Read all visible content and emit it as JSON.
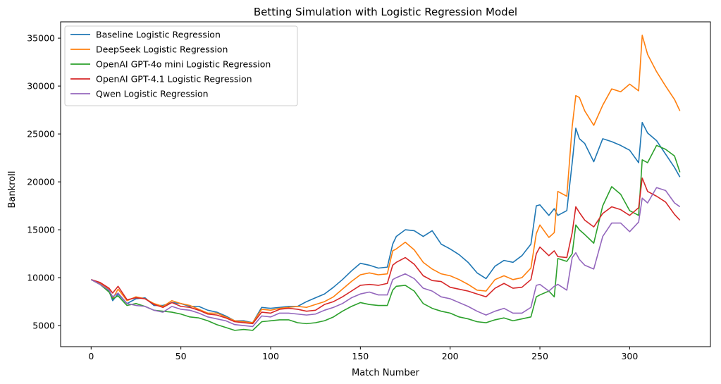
{
  "chart_data": {
    "type": "line",
    "title": "Betting Simulation with Logistic Regression Model",
    "xlabel": "Match Number",
    "ylabel": "Bankroll",
    "xlim": [
      -17,
      345
    ],
    "ylim": [
      2800,
      36700
    ],
    "xticks": [
      0,
      50,
      100,
      150,
      200,
      250,
      300
    ],
    "yticks": [
      5000,
      10000,
      15000,
      20000,
      25000,
      30000,
      35000
    ],
    "grid": false,
    "legend_position": "top-left",
    "series": [
      {
        "name": "Baseline Logistic Regression",
        "color": "#1f77b4",
        "x": [
          0,
          5,
          10,
          12,
          15,
          20,
          25,
          30,
          35,
          40,
          45,
          50,
          55,
          60,
          65,
          70,
          75,
          80,
          85,
          90,
          95,
          100,
          105,
          110,
          115,
          120,
          125,
          130,
          135,
          140,
          145,
          150,
          155,
          160,
          165,
          168,
          170,
          175,
          180,
          185,
          190,
          195,
          200,
          205,
          210,
          215,
          220,
          225,
          230,
          235,
          240,
          245,
          248,
          250,
          255,
          258,
          260,
          265,
          268,
          270,
          272,
          275,
          280,
          285,
          290,
          295,
          300,
          305,
          307,
          310,
          315,
          320,
          325,
          328
        ],
        "y": [
          9800,
          9300,
          8600,
          7600,
          8300,
          7300,
          7800,
          7900,
          7100,
          7100,
          7400,
          7300,
          7000,
          7000,
          6600,
          6400,
          6000,
          5500,
          5500,
          5300,
          6900,
          6800,
          6900,
          7000,
          7000,
          7500,
          7900,
          8300,
          9000,
          9800,
          10700,
          11500,
          11300,
          11000,
          11100,
          13500,
          14300,
          15000,
          14900,
          14300,
          14900,
          13500,
          13000,
          12400,
          11600,
          10500,
          9900,
          11200,
          11800,
          11600,
          12300,
          13500,
          17500,
          17600,
          16500,
          17200,
          16500,
          17000,
          22000,
          25600,
          24500,
          24000,
          22100,
          24500,
          24200,
          23800,
          23300,
          22000,
          26200,
          25100,
          24300,
          22900,
          21500,
          20500
        ]
      },
      {
        "name": "DeepSeek Logistic Regression",
        "color": "#ff7f0e",
        "x": [
          0,
          5,
          10,
          12,
          15,
          20,
          25,
          30,
          35,
          40,
          45,
          50,
          55,
          60,
          65,
          70,
          75,
          80,
          85,
          90,
          95,
          100,
          105,
          110,
          115,
          120,
          125,
          130,
          135,
          140,
          145,
          150,
          155,
          160,
          165,
          168,
          170,
          175,
          180,
          185,
          190,
          195,
          200,
          205,
          210,
          215,
          220,
          225,
          230,
          235,
          240,
          245,
          248,
          250,
          255,
          258,
          260,
          265,
          268,
          270,
          272,
          275,
          280,
          285,
          290,
          295,
          300,
          305,
          307,
          310,
          315,
          320,
          325,
          328
        ],
        "y": [
          9800,
          9400,
          8800,
          7800,
          8800,
          7600,
          8000,
          7800,
          7300,
          7000,
          7600,
          7300,
          7100,
          6700,
          6300,
          6300,
          5900,
          5500,
          5400,
          5300,
          6700,
          6600,
          6800,
          6900,
          7000,
          6900,
          7200,
          7500,
          8000,
          8800,
          9600,
          10300,
          10500,
          10300,
          10400,
          12800,
          13000,
          13700,
          12900,
          11600,
          10900,
          10400,
          10200,
          9800,
          9300,
          8700,
          8600,
          9800,
          10200,
          9800,
          10000,
          11000,
          14600,
          15500,
          14200,
          14700,
          19000,
          18500,
          25800,
          29000,
          28800,
          27400,
          25900,
          28000,
          29700,
          29400,
          30200,
          29500,
          35300,
          33300,
          31500,
          30000,
          28600,
          27400
        ]
      },
      {
        "name": "OpenAI GPT-4o mini Logistic Regression",
        "color": "#2ca02c",
        "x": [
          0,
          5,
          10,
          12,
          15,
          20,
          25,
          30,
          35,
          40,
          45,
          50,
          55,
          60,
          65,
          70,
          75,
          80,
          85,
          90,
          95,
          100,
          105,
          110,
          115,
          120,
          125,
          130,
          135,
          140,
          145,
          150,
          155,
          160,
          165,
          168,
          170,
          175,
          180,
          185,
          190,
          195,
          200,
          205,
          210,
          215,
          220,
          225,
          230,
          235,
          240,
          245,
          248,
          250,
          255,
          258,
          260,
          265,
          268,
          270,
          272,
          275,
          280,
          285,
          290,
          295,
          300,
          305,
          307,
          310,
          315,
          320,
          325,
          328
        ],
        "y": [
          9800,
          9300,
          8500,
          7800,
          8100,
          7100,
          7300,
          7000,
          6600,
          6500,
          6400,
          6200,
          5900,
          5800,
          5500,
          5100,
          4800,
          4500,
          4600,
          4500,
          5400,
          5500,
          5600,
          5600,
          5300,
          5200,
          5300,
          5500,
          5900,
          6500,
          7000,
          7400,
          7200,
          7100,
          7100,
          8700,
          9100,
          9200,
          8600,
          7300,
          6800,
          6500,
          6300,
          5900,
          5700,
          5400,
          5300,
          5600,
          5800,
          5500,
          5700,
          5900,
          8000,
          8200,
          8600,
          8000,
          12000,
          11700,
          12500,
          15500,
          15000,
          14500,
          13600,
          17500,
          19500,
          18700,
          17000,
          16500,
          22300,
          22000,
          23800,
          23400,
          22700,
          21000
        ]
      },
      {
        "name": "OpenAI GPT-4.1 Logistic Regression",
        "color": "#d62728",
        "x": [
          0,
          5,
          10,
          12,
          15,
          20,
          25,
          30,
          35,
          40,
          45,
          50,
          55,
          60,
          65,
          70,
          75,
          80,
          85,
          90,
          95,
          100,
          105,
          110,
          115,
          120,
          125,
          130,
          135,
          140,
          145,
          150,
          155,
          160,
          165,
          168,
          170,
          175,
          180,
          185,
          190,
          195,
          200,
          205,
          210,
          215,
          220,
          225,
          230,
          235,
          240,
          245,
          248,
          250,
          255,
          258,
          260,
          265,
          268,
          270,
          272,
          275,
          280,
          285,
          290,
          295,
          300,
          305,
          307,
          310,
          315,
          320,
          325,
          328
        ],
        "y": [
          9800,
          9500,
          8900,
          8400,
          9100,
          7700,
          7900,
          7800,
          7200,
          6900,
          7400,
          7000,
          6900,
          6600,
          6200,
          6100,
          5800,
          5400,
          5300,
          5200,
          6400,
          6300,
          6700,
          6800,
          6700,
          6500,
          6600,
          7200,
          7500,
          8000,
          8600,
          9200,
          9300,
          9200,
          9400,
          11300,
          11600,
          12100,
          11400,
          10200,
          9700,
          9600,
          9000,
          8800,
          8600,
          8300,
          8000,
          8900,
          9400,
          8900,
          9000,
          9800,
          12500,
          13200,
          12300,
          12800,
          12200,
          12100,
          14700,
          17400,
          16800,
          16000,
          15300,
          16700,
          17400,
          17100,
          16500,
          17300,
          20400,
          19000,
          18500,
          17900,
          16600,
          16000
        ]
      },
      {
        "name": "Qwen Logistic Regression",
        "color": "#9467bd",
        "x": [
          0,
          5,
          10,
          12,
          15,
          20,
          25,
          30,
          35,
          40,
          45,
          50,
          55,
          60,
          65,
          70,
          75,
          80,
          85,
          90,
          95,
          100,
          105,
          110,
          115,
          120,
          125,
          130,
          135,
          140,
          145,
          150,
          155,
          160,
          165,
          168,
          170,
          175,
          180,
          185,
          190,
          195,
          200,
          205,
          210,
          215,
          220,
          225,
          230,
          235,
          240,
          245,
          248,
          250,
          255,
          258,
          260,
          265,
          268,
          270,
          272,
          275,
          280,
          285,
          290,
          295,
          300,
          305,
          307,
          310,
          315,
          320,
          325,
          328
        ],
        "y": [
          9800,
          9300,
          8700,
          8000,
          8400,
          7300,
          7100,
          7000,
          6600,
          6400,
          7000,
          6700,
          6600,
          6300,
          5900,
          5700,
          5500,
          5100,
          5000,
          4900,
          6000,
          5900,
          6300,
          6300,
          6200,
          6100,
          6200,
          6600,
          6900,
          7300,
          7900,
          8300,
          8500,
          8200,
          8200,
          9800,
          10000,
          10400,
          9900,
          8900,
          8600,
          8000,
          7800,
          7400,
          7000,
          6500,
          6100,
          6500,
          6800,
          6300,
          6300,
          6900,
          9200,
          9300,
          8600,
          9100,
          9300,
          8700,
          12100,
          12600,
          11900,
          11300,
          10900,
          14300,
          15700,
          15700,
          14800,
          15800,
          18300,
          17800,
          19400,
          19100,
          17800,
          17400
        ]
      }
    ]
  }
}
